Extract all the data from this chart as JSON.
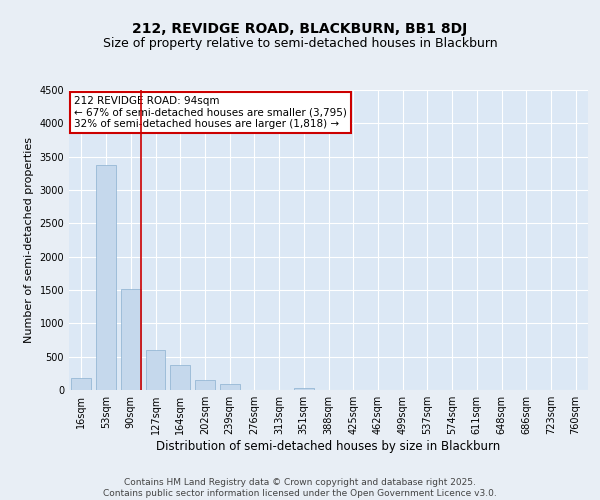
{
  "title1": "212, REVIDGE ROAD, BLACKBURN, BB1 8DJ",
  "title2": "Size of property relative to semi-detached houses in Blackburn",
  "xlabel": "Distribution of semi-detached houses by size in Blackburn",
  "ylabel": "Number of semi-detached properties",
  "categories": [
    "16sqm",
    "53sqm",
    "90sqm",
    "127sqm",
    "164sqm",
    "202sqm",
    "239sqm",
    "276sqm",
    "313sqm",
    "351sqm",
    "388sqm",
    "425sqm",
    "462sqm",
    "499sqm",
    "537sqm",
    "574sqm",
    "611sqm",
    "648sqm",
    "686sqm",
    "723sqm",
    "760sqm"
  ],
  "values": [
    175,
    3370,
    1510,
    600,
    380,
    145,
    85,
    0,
    0,
    35,
    0,
    0,
    0,
    0,
    0,
    0,
    0,
    0,
    0,
    0,
    0
  ],
  "bar_color": "#c5d8ec",
  "bar_edge_color": "#8ab0d0",
  "vline_x_index": 2,
  "vline_color": "#cc0000",
  "annotation_text": "212 REVIDGE ROAD: 94sqm\n← 67% of semi-detached houses are smaller (3,795)\n32% of semi-detached houses are larger (1,818) →",
  "annotation_box_facecolor": "#ffffff",
  "annotation_box_edgecolor": "#cc0000",
  "ylim": [
    0,
    4500
  ],
  "yticks": [
    0,
    500,
    1000,
    1500,
    2000,
    2500,
    3000,
    3500,
    4000,
    4500
  ],
  "bg_color": "#e8eef5",
  "plot_bg_color": "#dce8f5",
  "grid_color": "#ffffff",
  "footer": "Contains HM Land Registry data © Crown copyright and database right 2025.\nContains public sector information licensed under the Open Government Licence v3.0.",
  "title1_fontsize": 10,
  "title2_fontsize": 9,
  "xlabel_fontsize": 8.5,
  "ylabel_fontsize": 8,
  "tick_fontsize": 7,
  "footer_fontsize": 6.5,
  "annotation_fontsize": 7.5
}
